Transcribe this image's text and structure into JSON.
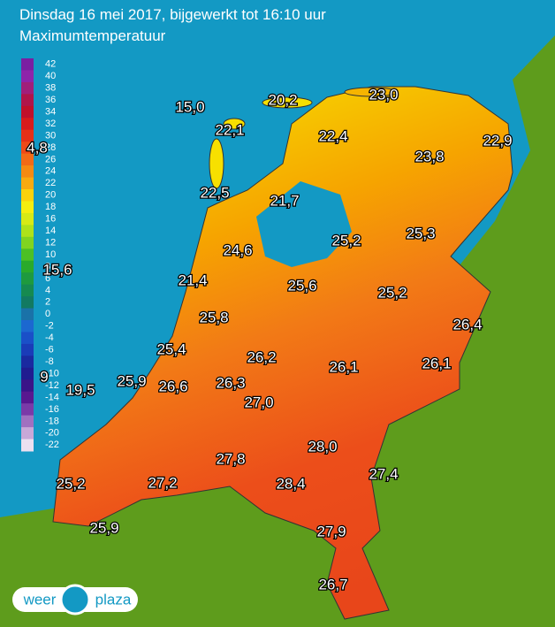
{
  "header": {
    "title": "Dinsdag 16 mei 2017, bijgewerkt tot 16:10 uur",
    "subtitle": "Maximumtemperatuur"
  },
  "legend": [
    {
      "label": 42,
      "color": "#7a1fa2"
    },
    {
      "label": 40,
      "color": "#8e24aa"
    },
    {
      "label": 38,
      "color": "#a01f7a"
    },
    {
      "label": 36,
      "color": "#b0154a"
    },
    {
      "label": 34,
      "color": "#c0102a"
    },
    {
      "label": 32,
      "color": "#d81b1b"
    },
    {
      "label": 30,
      "color": "#e53017"
    },
    {
      "label": 28,
      "color": "#ef4a17"
    },
    {
      "label": 26,
      "color": "#f26a16"
    },
    {
      "label": 24,
      "color": "#f58a12"
    },
    {
      "label": 22,
      "color": "#f8aa10"
    },
    {
      "label": 20,
      "color": "#fbd20c"
    },
    {
      "label": 18,
      "color": "#f4ee10"
    },
    {
      "label": 16,
      "color": "#d6ea16"
    },
    {
      "label": 14,
      "color": "#aee21a"
    },
    {
      "label": 12,
      "color": "#80d420"
    },
    {
      "label": 10,
      "color": "#4cc024"
    },
    {
      "label": 8,
      "color": "#2aaa2a"
    },
    {
      "label": 6,
      "color": "#1e9a3e"
    },
    {
      "label": 4,
      "color": "#168a50"
    },
    {
      "label": 2,
      "color": "#127a62"
    },
    {
      "label": 0,
      "color": "#1a72a8"
    },
    {
      "label": -2,
      "color": "#1c68d0"
    },
    {
      "label": -4,
      "color": "#1a50c8"
    },
    {
      "label": -6,
      "color": "#1a3cb8"
    },
    {
      "label": -8,
      "color": "#1a2aa0"
    },
    {
      "label": -10,
      "color": "#201c90"
    },
    {
      "label": -12,
      "color": "#3a1488"
    },
    {
      "label": -14,
      "color": "#581890"
    },
    {
      "label": -16,
      "color": "#7a3aa8"
    },
    {
      "label": -18,
      "color": "#a070c0"
    },
    {
      "label": -20,
      "color": "#c8a8d8"
    },
    {
      "label": -22,
      "color": "#ece0f0"
    }
  ],
  "stations": [
    "15,0",
    "20,2",
    "23,0",
    "22,1",
    "22,4",
    "22,9",
    "23,8",
    "22,5",
    "21,7",
    "25,2",
    "25,3",
    "24,6",
    "21,4",
    "25,6",
    "25,2",
    "26,4",
    "25,8",
    "25,4",
    "26,2",
    "26,1",
    "26,1",
    "25,9",
    "26,6",
    "26,3",
    "27,0",
    "28,0",
    "27,8",
    "27,4",
    "27,2",
    "28,4",
    "25,2",
    "27,9",
    "25,9",
    "26,7",
    "4,8",
    "15,6",
    "9",
    "19,5"
  ],
  "logo": {
    "left": "weer",
    "right": "plaza"
  }
}
